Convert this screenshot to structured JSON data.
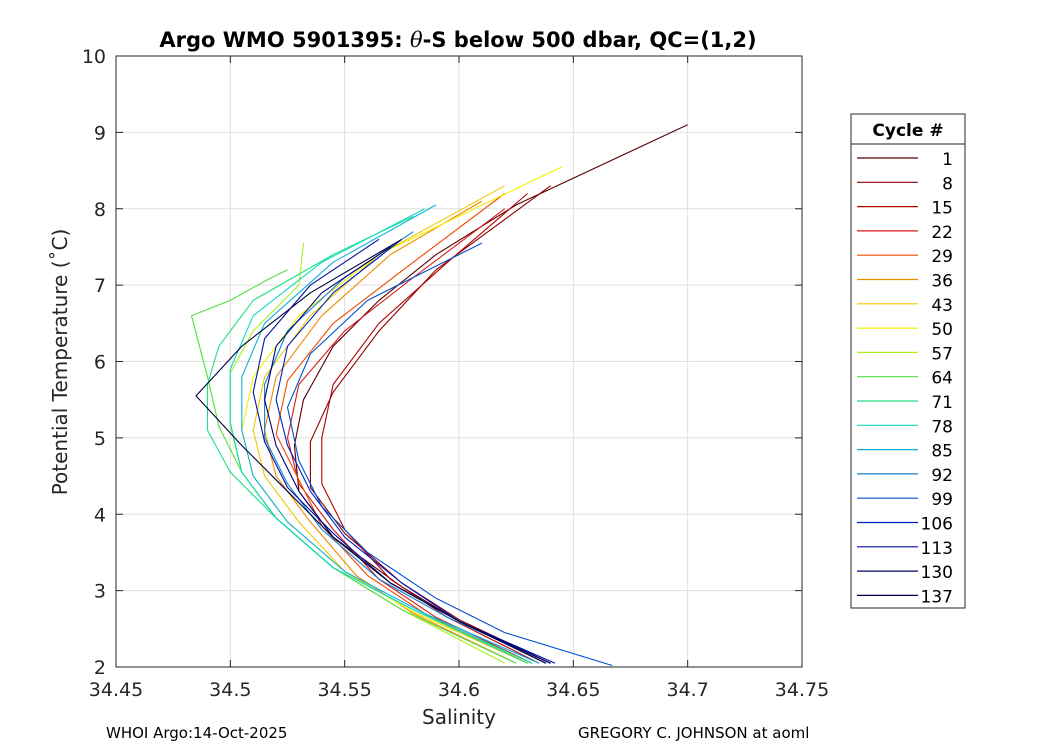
{
  "chart_data": {
    "type": "line",
    "title": "Argo WMO 5901395: θ-S below 500 dbar,  QC=(1,2)",
    "title_parts": {
      "prefix": "Argo WMO 5901395: ",
      "theta": "θ",
      "suffix": "-S below 500 dbar,  QC=(1,2)"
    },
    "xlabel": "Salinity",
    "ylabel": "Potential Temperature (˚C)",
    "xlim": [
      34.45,
      34.75
    ],
    "ylim": [
      2,
      10
    ],
    "xticks": [
      "34.45",
      "34.5",
      "34.55",
      "34.6",
      "34.65",
      "34.7",
      "34.75"
    ],
    "yticks": [
      "2",
      "3",
      "4",
      "5",
      "6",
      "7",
      "8",
      "9",
      "10"
    ],
    "grid": true,
    "legend": {
      "title": "Cycle #",
      "position": "right",
      "entries": [
        {
          "label": "1",
          "color": "#5a0000"
        },
        {
          "label": "8",
          "color": "#8a0000"
        },
        {
          "label": "15",
          "color": "#b40000"
        },
        {
          "label": "22",
          "color": "#d81a1a"
        },
        {
          "label": "29",
          "color": "#ee4a00"
        },
        {
          "label": "36",
          "color": "#f08a00"
        },
        {
          "label": "43",
          "color": "#f0c800"
        },
        {
          "label": "50",
          "color": "#f4f000"
        },
        {
          "label": "57",
          "color": "#a8f020"
        },
        {
          "label": "64",
          "color": "#50e040"
        },
        {
          "label": "71",
          "color": "#20e080"
        },
        {
          "label": "78",
          "color": "#10d8c0"
        },
        {
          "label": "85",
          "color": "#10b0e0"
        },
        {
          "label": "92",
          "color": "#1080d0"
        },
        {
          "label": "99",
          "color": "#0050d0"
        },
        {
          "label": "106",
          "color": "#0020c0"
        },
        {
          "label": "113",
          "color": "#0010a0"
        },
        {
          "label": "130",
          "color": "#000070"
        },
        {
          "label": "137",
          "color": "#000040"
        }
      ]
    },
    "series": [
      {
        "name": "1",
        "color": "#5a0000",
        "points": [
          [
            34.638,
            2.05
          ],
          [
            34.6,
            2.6
          ],
          [
            34.575,
            3.05
          ],
          [
            34.545,
            3.7
          ],
          [
            34.53,
            4.3
          ],
          [
            34.528,
            4.9
          ],
          [
            34.532,
            5.5
          ],
          [
            34.545,
            6.2
          ],
          [
            34.565,
            6.8
          ],
          [
            34.59,
            7.4
          ],
          [
            34.625,
            8.05
          ],
          [
            34.7,
            9.1
          ]
        ]
      },
      {
        "name": "8",
        "color": "#8a0000",
        "points": [
          [
            34.64,
            2.05
          ],
          [
            34.6,
            2.62
          ],
          [
            34.575,
            3.1
          ],
          [
            34.55,
            3.75
          ],
          [
            34.535,
            4.35
          ],
          [
            34.535,
            4.95
          ],
          [
            34.545,
            5.6
          ],
          [
            34.565,
            6.4
          ],
          [
            34.59,
            7.2
          ],
          [
            34.64,
            8.3
          ]
        ]
      },
      {
        "name": "15",
        "color": "#b40000",
        "points": [
          [
            34.635,
            2.05
          ],
          [
            34.595,
            2.65
          ],
          [
            34.57,
            3.15
          ],
          [
            34.55,
            3.8
          ],
          [
            34.54,
            4.4
          ],
          [
            34.54,
            5.0
          ],
          [
            34.545,
            5.7
          ],
          [
            34.565,
            6.5
          ],
          [
            34.595,
            7.3
          ],
          [
            34.63,
            8.2
          ]
        ]
      },
      {
        "name": "22",
        "color": "#d81a1a",
        "points": [
          [
            34.632,
            2.05
          ],
          [
            34.59,
            2.65
          ],
          [
            34.565,
            3.15
          ],
          [
            34.545,
            3.8
          ],
          [
            34.53,
            4.4
          ],
          [
            34.525,
            5.0
          ],
          [
            34.53,
            5.7
          ],
          [
            34.55,
            6.4
          ],
          [
            34.58,
            7.1
          ],
          [
            34.62,
            8.0
          ]
        ]
      },
      {
        "name": "29",
        "color": "#ee4a00",
        "points": [
          [
            34.63,
            2.05
          ],
          [
            34.585,
            2.7
          ],
          [
            34.56,
            3.2
          ],
          [
            34.54,
            3.85
          ],
          [
            34.53,
            4.45
          ],
          [
            34.52,
            5.05
          ],
          [
            34.525,
            5.75
          ],
          [
            34.545,
            6.5
          ],
          [
            34.58,
            7.3
          ],
          [
            34.62,
            8.2
          ]
        ]
      },
      {
        "name": "36",
        "color": "#f08a00",
        "points": [
          [
            34.625,
            2.05
          ],
          [
            34.58,
            2.7
          ],
          [
            34.555,
            3.2
          ],
          [
            34.535,
            3.9
          ],
          [
            34.52,
            4.5
          ],
          [
            34.515,
            5.1
          ],
          [
            34.52,
            5.8
          ],
          [
            34.54,
            6.6
          ],
          [
            34.57,
            7.4
          ],
          [
            34.61,
            8.1
          ]
        ]
      },
      {
        "name": "43",
        "color": "#f0c800",
        "points": [
          [
            34.63,
            2.05
          ],
          [
            34.58,
            2.72
          ],
          [
            34.55,
            3.25
          ],
          [
            34.53,
            3.9
          ],
          [
            34.515,
            4.5
          ],
          [
            34.51,
            5.1
          ],
          [
            34.515,
            5.8
          ],
          [
            34.535,
            6.6
          ],
          [
            34.565,
            7.4
          ],
          [
            34.62,
            8.3
          ]
        ]
      },
      {
        "name": "50",
        "color": "#f4f000",
        "points": [
          [
            34.632,
            2.05
          ],
          [
            34.58,
            2.72
          ],
          [
            34.55,
            3.25
          ],
          [
            34.525,
            3.9
          ],
          [
            34.51,
            4.5
          ],
          [
            34.505,
            5.1
          ],
          [
            34.51,
            5.8
          ],
          [
            34.53,
            6.6
          ],
          [
            34.565,
            7.4
          ],
          [
            34.645,
            8.55
          ]
        ]
      },
      {
        "name": "57",
        "color": "#a8f020",
        "points": [
          [
            34.62,
            2.05
          ],
          [
            34.575,
            2.75
          ],
          [
            34.545,
            3.3
          ],
          [
            34.52,
            3.95
          ],
          [
            34.505,
            4.55
          ],
          [
            34.5,
            5.15
          ],
          [
            34.5,
            5.85
          ],
          [
            34.51,
            6.4
          ],
          [
            34.53,
            7.0
          ],
          [
            34.532,
            7.55
          ]
        ]
      },
      {
        "name": "64",
        "color": "#50e040",
        "points": [
          [
            34.625,
            2.05
          ],
          [
            34.575,
            2.75
          ],
          [
            34.545,
            3.3
          ],
          [
            34.52,
            3.95
          ],
          [
            34.505,
            4.55
          ],
          [
            34.495,
            5.15
          ],
          [
            34.49,
            5.8
          ],
          [
            34.483,
            6.6
          ],
          [
            34.5,
            6.8
          ],
          [
            34.515,
            7.05
          ],
          [
            34.525,
            7.2
          ]
        ]
      },
      {
        "name": "71",
        "color": "#20e080",
        "points": [
          [
            34.63,
            2.05
          ],
          [
            34.58,
            2.75
          ],
          [
            34.545,
            3.3
          ],
          [
            34.52,
            3.95
          ],
          [
            34.5,
            4.55
          ],
          [
            34.49,
            5.1
          ],
          [
            34.49,
            5.7
          ],
          [
            34.495,
            6.2
          ],
          [
            34.51,
            6.8
          ],
          [
            34.545,
            7.4
          ],
          [
            34.58,
            7.9
          ]
        ]
      },
      {
        "name": "78",
        "color": "#10d8c0",
        "points": [
          [
            34.632,
            2.05
          ],
          [
            34.58,
            2.75
          ],
          [
            34.545,
            3.3
          ],
          [
            34.52,
            3.95
          ],
          [
            34.505,
            4.55
          ],
          [
            34.5,
            5.2
          ],
          [
            34.5,
            5.9
          ],
          [
            34.51,
            6.6
          ],
          [
            34.54,
            7.3
          ],
          [
            34.585,
            8.0
          ]
        ]
      },
      {
        "name": "85",
        "color": "#10b0e0",
        "points": [
          [
            34.635,
            2.05
          ],
          [
            34.585,
            2.7
          ],
          [
            34.55,
            3.25
          ],
          [
            34.525,
            3.9
          ],
          [
            34.51,
            4.5
          ],
          [
            34.505,
            5.1
          ],
          [
            34.505,
            5.8
          ],
          [
            34.515,
            6.5
          ],
          [
            34.545,
            7.3
          ],
          [
            34.59,
            8.05
          ]
        ]
      },
      {
        "name": "92",
        "color": "#1080d0",
        "points": [
          [
            34.64,
            2.05
          ],
          [
            34.595,
            2.65
          ],
          [
            34.565,
            3.15
          ],
          [
            34.54,
            3.8
          ],
          [
            34.525,
            4.4
          ],
          [
            34.515,
            5.0
          ],
          [
            34.515,
            5.7
          ],
          [
            34.525,
            6.4
          ],
          [
            34.55,
            7.1
          ],
          [
            34.58,
            7.7
          ]
        ]
      },
      {
        "name": "99",
        "color": "#0050d0",
        "points": [
          [
            34.667,
            2.02
          ],
          [
            34.62,
            2.45
          ],
          [
            34.59,
            2.9
          ],
          [
            34.56,
            3.5
          ],
          [
            34.54,
            4.1
          ],
          [
            34.53,
            4.7
          ],
          [
            34.525,
            5.4
          ],
          [
            34.535,
            6.1
          ],
          [
            34.56,
            6.8
          ],
          [
            34.61,
            7.55
          ]
        ]
      },
      {
        "name": "106",
        "color": "#0020c0",
        "points": [
          [
            34.64,
            2.05
          ],
          [
            34.6,
            2.6
          ],
          [
            34.575,
            3.1
          ],
          [
            34.55,
            3.7
          ],
          [
            34.535,
            4.3
          ],
          [
            34.525,
            4.9
          ],
          [
            34.52,
            5.5
          ],
          [
            34.525,
            6.2
          ],
          [
            34.545,
            6.9
          ],
          [
            34.575,
            7.6
          ]
        ]
      },
      {
        "name": "113",
        "color": "#0010a0",
        "points": [
          [
            34.642,
            2.05
          ],
          [
            34.6,
            2.6
          ],
          [
            34.57,
            3.1
          ],
          [
            34.545,
            3.75
          ],
          [
            34.525,
            4.35
          ],
          [
            34.515,
            4.95
          ],
          [
            34.51,
            5.6
          ],
          [
            34.515,
            6.3
          ],
          [
            34.535,
            7.0
          ],
          [
            34.565,
            7.6
          ]
        ]
      },
      {
        "name": "130",
        "color": "#000070",
        "points": [
          [
            34.64,
            2.05
          ],
          [
            34.6,
            2.6
          ],
          [
            34.57,
            3.1
          ],
          [
            34.545,
            3.7
          ],
          [
            34.53,
            4.3
          ],
          [
            34.52,
            4.9
          ],
          [
            34.515,
            5.5
          ],
          [
            34.52,
            6.2
          ],
          [
            34.54,
            6.9
          ],
          [
            34.57,
            7.5
          ]
        ]
      },
      {
        "name": "137",
        "color": "#000040",
        "points": [
          [
            34.638,
            2.05
          ],
          [
            34.6,
            2.6
          ],
          [
            34.57,
            3.1
          ],
          [
            34.545,
            3.7
          ],
          [
            34.525,
            4.3
          ],
          [
            34.505,
            4.9
          ],
          [
            34.485,
            5.55
          ],
          [
            34.505,
            6.2
          ],
          [
            34.535,
            6.9
          ],
          [
            34.575,
            7.6
          ]
        ]
      }
    ]
  },
  "footer": {
    "left": "WHOI Argo:14-Oct-2025",
    "right": "GREGORY C. JOHNSON at aoml"
  }
}
